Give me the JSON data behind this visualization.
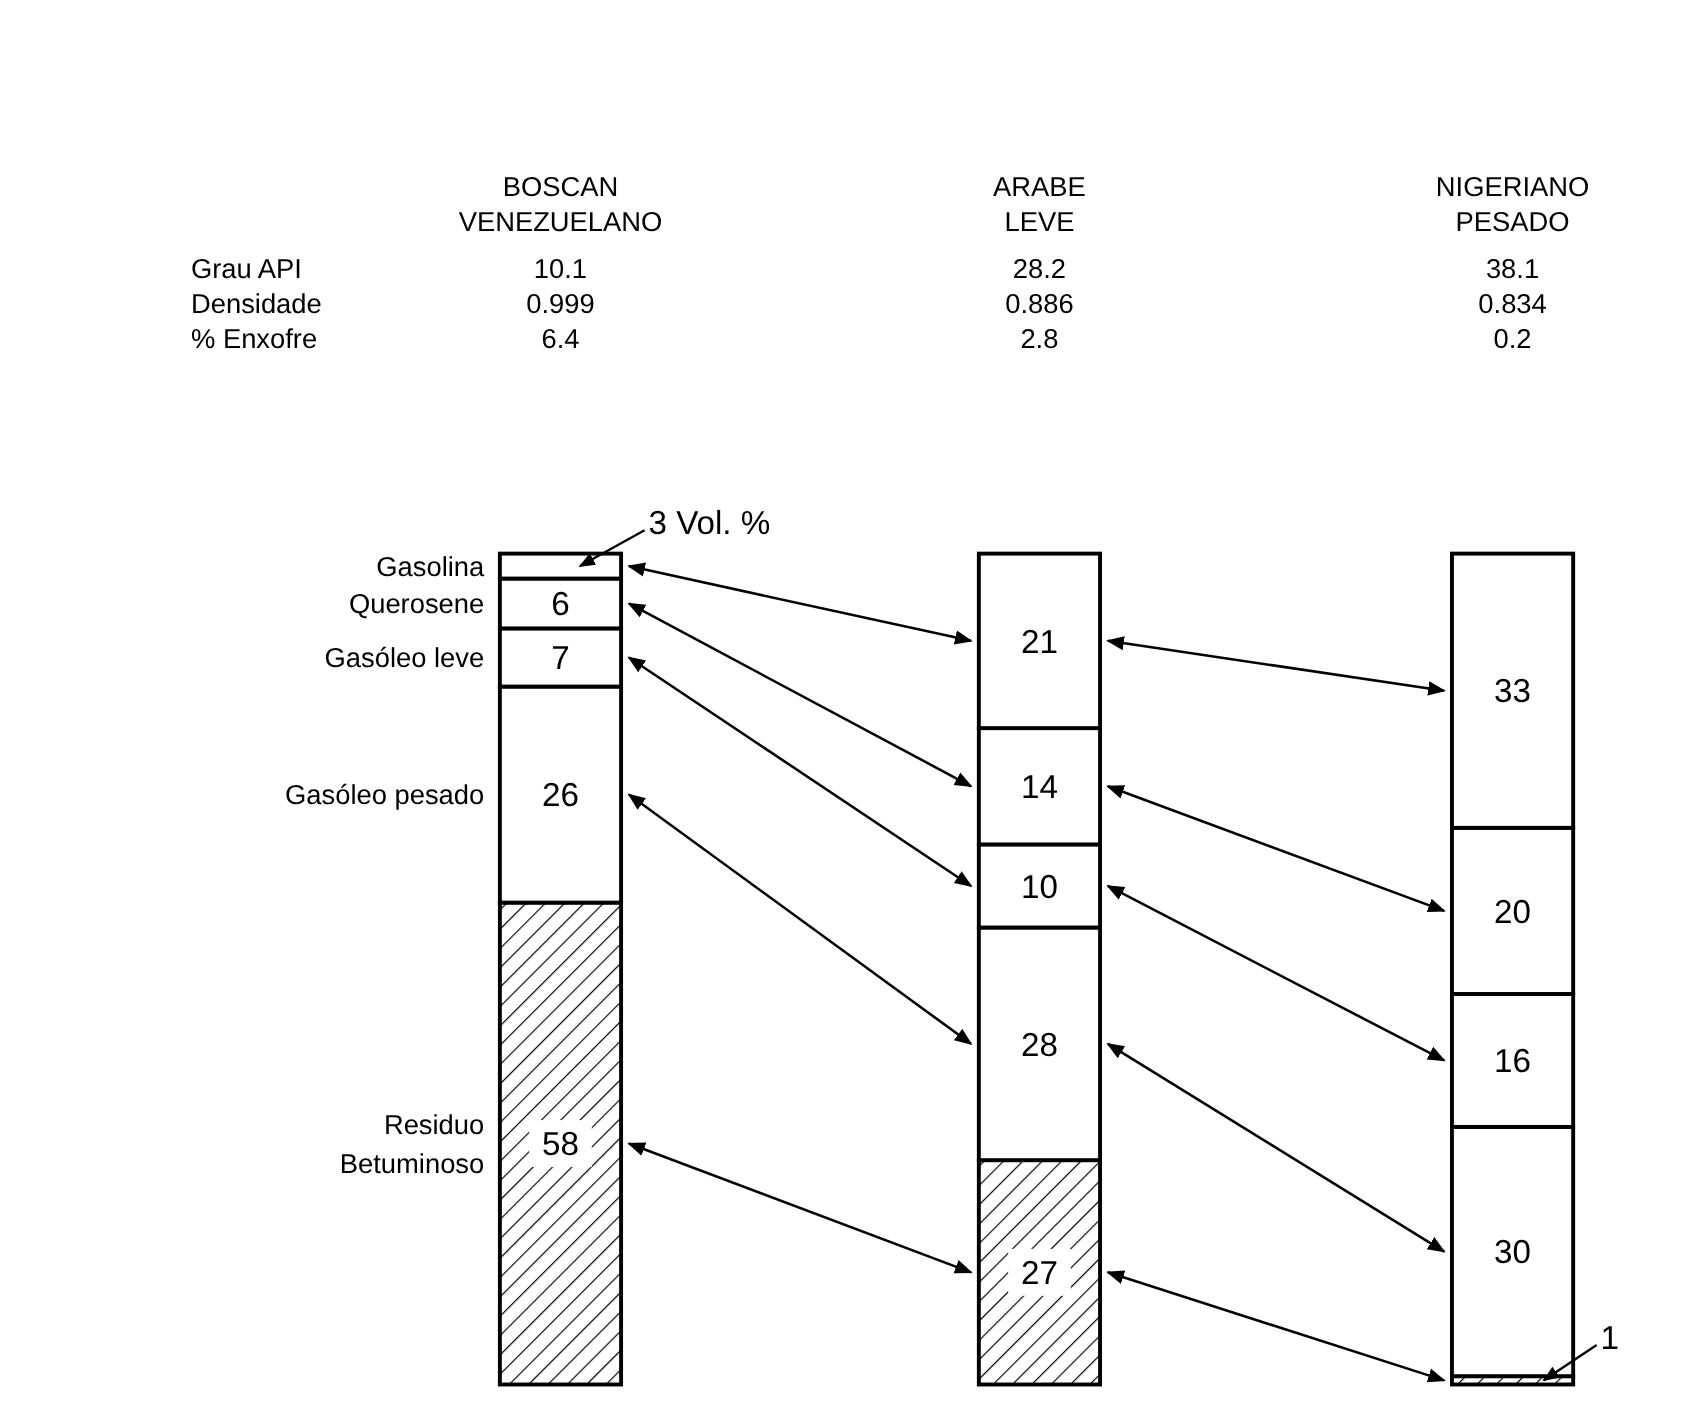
{
  "chart_data": {
    "type": "bar",
    "stacked": true,
    "categories": [
      "BOSCAN VENEZUELANO",
      "ARABE LEVE",
      "NIGERIANO PESADO"
    ],
    "series": [
      {
        "name": "Residuo Betuminoso",
        "color": "#000000",
        "values": [
          58,
          27,
          1
        ],
        "value_labels": [
          "58",
          "27",
          "1"
        ]
      },
      {
        "name": "Gasóleo pesado",
        "color": "#ffffff",
        "values": [
          26,
          28,
          30
        ],
        "value_labels": [
          "26",
          "28",
          "30"
        ]
      },
      {
        "name": "Gasóleo leve",
        "color": "#ffffff",
        "values": [
          7,
          10,
          16
        ],
        "value_labels": [
          "7",
          "10",
          "16"
        ]
      },
      {
        "name": "Querosene",
        "color": "#ffffff",
        "values": [
          6,
          14,
          20
        ],
        "value_labels": [
          "6",
          "14",
          "20"
        ]
      },
      {
        "name": "Gasolina",
        "color": "#ffffff",
        "values": [
          3,
          21,
          33
        ],
        "value_labels": [
          "3 Vol. %",
          "21",
          "33"
        ]
      }
    ],
    "annotations": [
      "Grau API",
      "Densidade",
      "% Enxofre",
      "10.1",
      "0.999",
      "6.4",
      "28.2",
      "0.886",
      "2.8",
      "38.1",
      "0.834",
      "0.2"
    ]
  }
}
